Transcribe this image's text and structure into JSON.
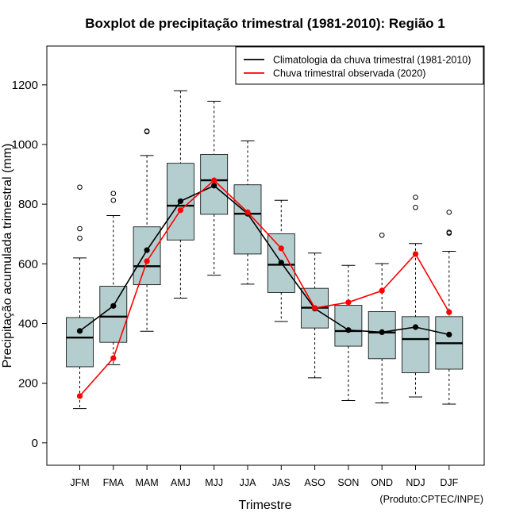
{
  "chart_data": {
    "type": "boxplot",
    "title": "Boxplot de precipitação trimestral (1981-2010): Região 1",
    "xlabel": "Trimestre",
    "ylabel": "Precipitação acumulada trimestral (mm)",
    "ylim": [
      -75,
      1330
    ],
    "yticks": [
      0,
      200,
      400,
      600,
      800,
      1000,
      1200
    ],
    "credit": "(Produto:CPTEC/INPE)",
    "categories": [
      "JFM",
      "FMA",
      "MAM",
      "AMJ",
      "MJJ",
      "JJA",
      "JAS",
      "ASO",
      "SON",
      "OND",
      "NDJ",
      "DJF"
    ],
    "boxes": [
      {
        "whisker_low": 115,
        "q1": 255,
        "median": 353,
        "q3": 420,
        "whisker_high": 620,
        "outliers": [
          686,
          718,
          857
        ]
      },
      {
        "whisker_low": 262,
        "q1": 337,
        "median": 423,
        "q3": 525,
        "whisker_high": 762,
        "outliers": [
          813,
          836
        ]
      },
      {
        "whisker_low": 374,
        "q1": 530,
        "median": 592,
        "q3": 724,
        "whisker_high": 963,
        "outliers": [
          1043,
          1045
        ]
      },
      {
        "whisker_low": 485,
        "q1": 680,
        "median": 795,
        "q3": 937,
        "whisker_high": 1180,
        "outliers": []
      },
      {
        "whisker_low": 562,
        "q1": 766,
        "median": 880,
        "q3": 967,
        "whisker_high": 1145,
        "outliers": []
      },
      {
        "whisker_low": 532,
        "q1": 633,
        "median": 768,
        "q3": 865,
        "whisker_high": 1012,
        "outliers": []
      },
      {
        "whisker_low": 407,
        "q1": 504,
        "median": 597,
        "q3": 701,
        "whisker_high": 813,
        "outliers": []
      },
      {
        "whisker_low": 218,
        "q1": 385,
        "median": 453,
        "q3": 518,
        "whisker_high": 636,
        "outliers": []
      },
      {
        "whisker_low": 142,
        "q1": 324,
        "median": 375,
        "q3": 461,
        "whisker_high": 595,
        "outliers": []
      },
      {
        "whisker_low": 134,
        "q1": 282,
        "median": 370,
        "q3": 440,
        "whisker_high": 601,
        "outliers": [
          696
        ]
      },
      {
        "whisker_low": 154,
        "q1": 235,
        "median": 348,
        "q3": 423,
        "whisker_high": 668,
        "outliers": [
          789,
          823
        ]
      },
      {
        "whisker_low": 130,
        "q1": 247,
        "median": 334,
        "q3": 423,
        "whisker_high": 642,
        "outliers": [
          703,
          706,
          773
        ]
      }
    ],
    "series": [
      {
        "name": "Climatologia da chuva trimestral (1981-2010)",
        "color": "#000000",
        "values": [
          375,
          459,
          646,
          810,
          862,
          768,
          604,
          450,
          378,
          371,
          388,
          363
        ]
      },
      {
        "name": "Chuva trimestral observada (2020)",
        "color": "#ff0000",
        "values": [
          157,
          284,
          609,
          780,
          880,
          773,
          652,
          452,
          471,
          510,
          633,
          438
        ]
      }
    ],
    "legend_position": "top-right",
    "box_fill": "#b4cecf"
  }
}
